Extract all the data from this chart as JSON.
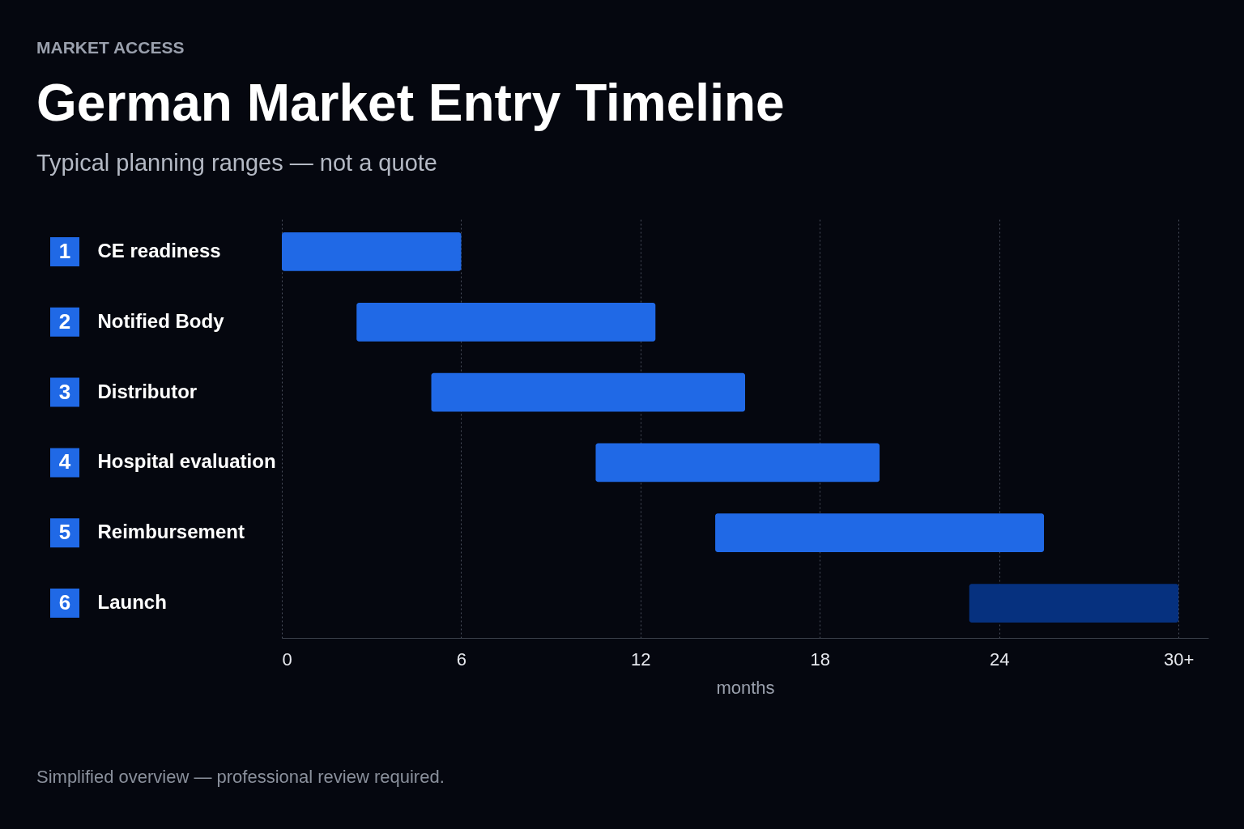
{
  "chart_data": {
    "type": "bar",
    "orientation": "horizontal",
    "title": "German Market Entry Timeline",
    "subtitle": "Typical planning ranges — not a quote",
    "xlabel": "months",
    "categories": [
      "CE readiness",
      "Notified Body",
      "Distributor",
      "Hospital evaluation",
      "Reimbursement",
      "Launch"
    ],
    "base": [
      0,
      2.5,
      5,
      10.5,
      14.5,
      23
    ],
    "values": [
      6,
      10,
      10.5,
      9.5,
      11,
      7
    ],
    "colors": [
      "#2069e6",
      "#2069e6",
      "#2069e6",
      "#2069e6",
      "#2069e6",
      "#06317f"
    ],
    "xlim": [
      0,
      31
    ],
    "xticks": [
      0,
      6,
      12,
      18,
      24,
      {
        "value": 30,
        "label": "30+"
      }
    ],
    "grid": "x",
    "annotations": [
      "MARKET ACCESS",
      "1",
      "2",
      "3",
      "4",
      "5",
      "6",
      "Simplified overview — professional review required."
    ]
  }
}
